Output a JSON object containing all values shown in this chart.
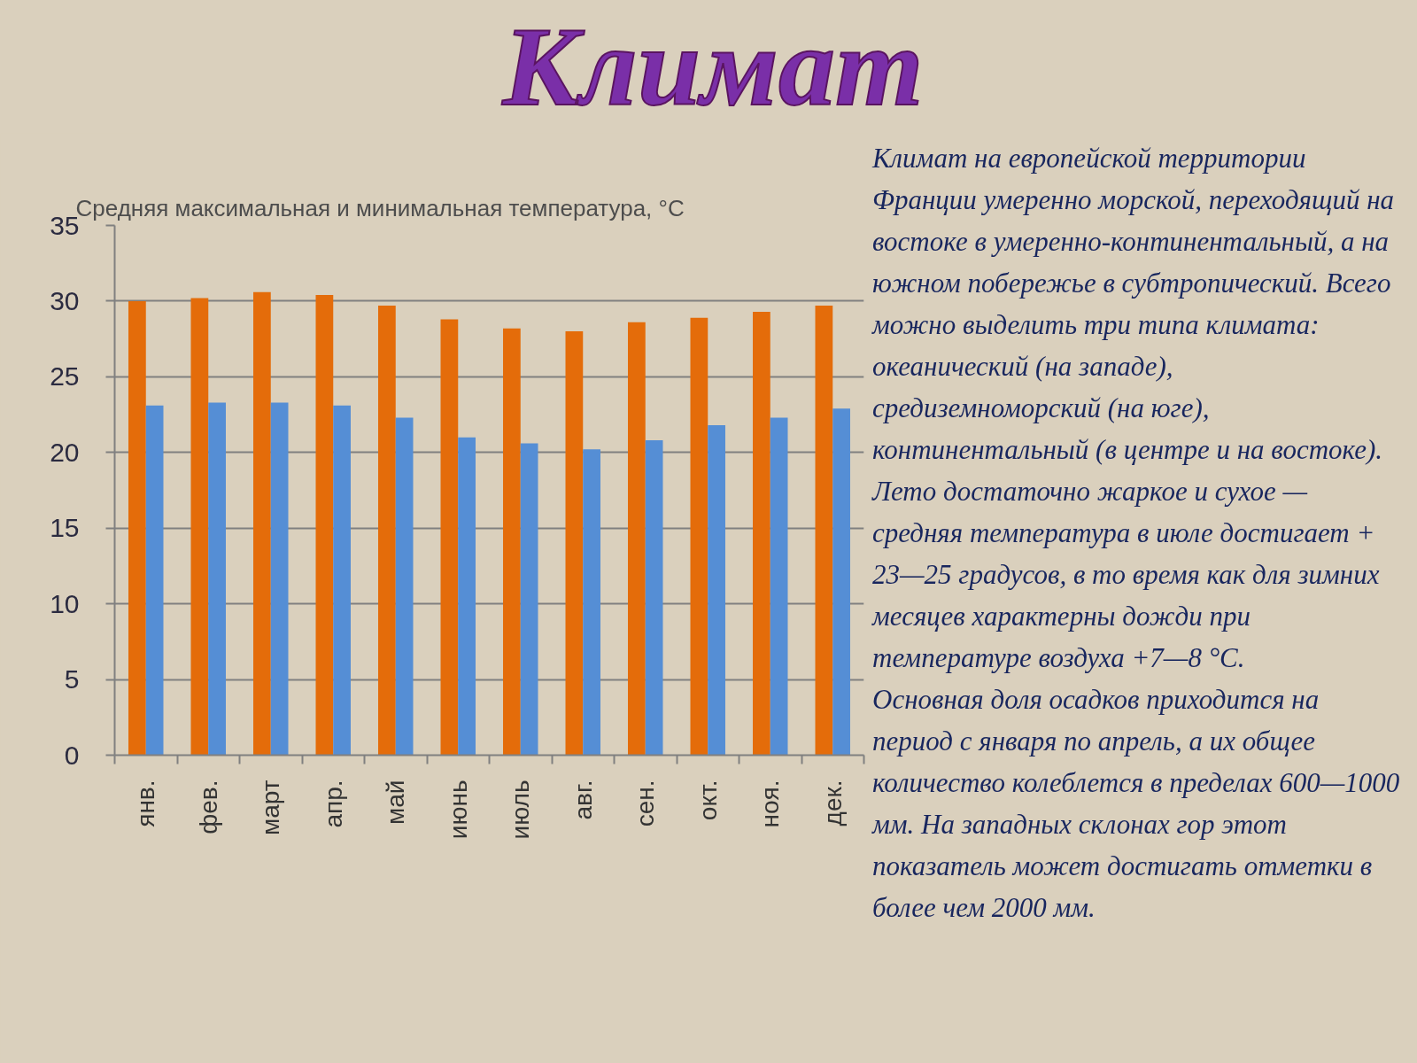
{
  "chart_data": {
    "type": "bar",
    "title": "Климат",
    "subtitle": "Средняя максимальная и минимальная температура, °C",
    "categories": [
      "янв.",
      "фев.",
      "март",
      "апр.",
      "май",
      "июнь",
      "июль",
      "авг.",
      "сен.",
      "окт.",
      "ноя.",
      "дек."
    ],
    "series": [
      {
        "color": "#e46c0a",
        "values": [
          30.0,
          30.2,
          30.6,
          30.4,
          29.7,
          28.8,
          28.2,
          28.0,
          28.6,
          28.9,
          29.3,
          29.7
        ]
      },
      {
        "color": "#558ed5",
        "values": [
          23.1,
          23.3,
          23.3,
          23.1,
          22.3,
          21.0,
          20.6,
          20.2,
          20.8,
          21.8,
          22.3,
          22.9
        ]
      }
    ],
    "ylim": [
      0,
      35
    ],
    "yticks": [
      0,
      5,
      10,
      15,
      20,
      25,
      30,
      35
    ],
    "grid": "y",
    "annotations": [
      "Климат на европейской территории Франции умеренно морской, переходящий на востоке в умеренно-континентальный, а на южном побережье в субтропический. Всего можно выделить три типа климата: океанический (на западе), средиземноморский (на юге), континентальный (в центре и на востоке). Лето достаточно жаркое и сухое — средняя температура в июле достигает + 23—25 градусов, в то время как для зимних месяцев характерны дожди при температуре воздуха +7—8 °C.",
      "Основная доля осадков приходится на период с января по апрель, а их общее количество колеблется в пределах 600—1000 мм. На западных склонах гор этот показатель может достигать отметки в более чем 2000 мм."
    ]
  }
}
